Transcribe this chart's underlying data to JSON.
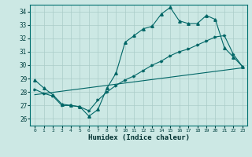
{
  "xlabel": "Humidex (Indice chaleur)",
  "bg_color": "#cce8e4",
  "grid_color": "#aaccc8",
  "line_color": "#006666",
  "xlim": [
    -0.5,
    23.5
  ],
  "ylim": [
    25.5,
    34.5
  ],
  "yticks": [
    26,
    27,
    28,
    29,
    30,
    31,
    32,
    33,
    34
  ],
  "xticks": [
    0,
    1,
    2,
    3,
    4,
    5,
    6,
    7,
    8,
    9,
    10,
    11,
    12,
    13,
    14,
    15,
    16,
    17,
    18,
    19,
    20,
    21,
    22,
    23
  ],
  "line1_x": [
    0,
    1,
    2,
    3,
    4,
    5,
    6,
    7,
    8,
    9,
    10,
    11,
    12,
    13,
    14,
    15,
    16,
    17,
    18,
    19,
    20,
    21,
    22,
    23
  ],
  "line1_y": [
    28.9,
    28.3,
    27.8,
    27.1,
    27.0,
    26.9,
    26.2,
    26.7,
    28.3,
    29.4,
    31.7,
    32.2,
    32.7,
    32.9,
    33.8,
    34.3,
    33.3,
    33.1,
    33.1,
    33.7,
    33.4,
    31.3,
    30.6,
    29.9
  ],
  "line2_x": [
    0,
    23
  ],
  "line2_y": [
    27.8,
    29.8
  ],
  "line3_x": [
    0,
    1,
    2,
    3,
    4,
    5,
    6,
    7,
    8,
    9,
    10,
    11,
    12,
    13,
    14,
    15,
    16,
    17,
    18,
    19,
    20,
    21,
    22,
    23
  ],
  "line3_y": [
    28.2,
    27.9,
    27.7,
    27.0,
    27.0,
    26.9,
    26.6,
    27.4,
    28.0,
    28.5,
    28.9,
    29.2,
    29.6,
    30.0,
    30.3,
    30.7,
    31.0,
    31.2,
    31.5,
    31.8,
    32.1,
    32.2,
    30.8,
    29.9
  ]
}
